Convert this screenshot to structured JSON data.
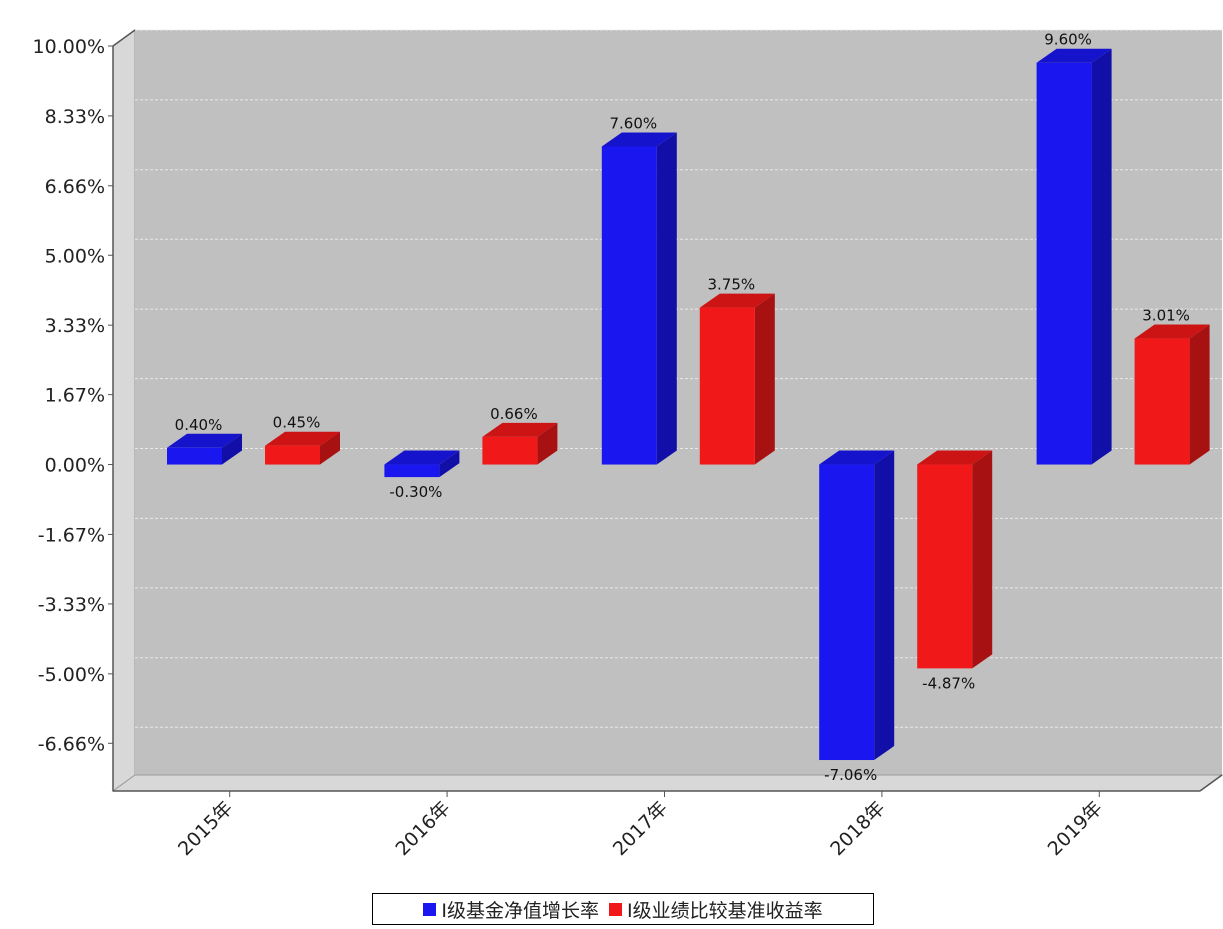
{
  "chart_data": {
    "type": "bar",
    "categories": [
      "2015年",
      "2016年",
      "2017年",
      "2018年",
      "2019年"
    ],
    "series": [
      {
        "name": "I级基金净值增长率",
        "color": "#1a16f0",
        "values": [
          0.4,
          -0.3,
          7.6,
          -7.06,
          9.6
        ]
      },
      {
        "name": "I级业绩比较基准收益率",
        "color": "#f01818",
        "values": [
          0.45,
          0.66,
          3.75,
          -4.87,
          3.01
        ]
      }
    ],
    "data_labels": [
      [
        "0.40%",
        "-0.30%",
        "7.60%",
        "-7.06%",
        "9.60%"
      ],
      [
        "0.45%",
        "0.66%",
        "3.75%",
        "-4.87%",
        "3.01%"
      ]
    ],
    "yticks": [
      10.0,
      8.33,
      6.66,
      5.0,
      3.33,
      1.67,
      0.0,
      -1.67,
      -3.33,
      -5.0,
      -6.66
    ],
    "ytick_labels": [
      "10.00%",
      "8.33%",
      "6.66%",
      "5.00%",
      "3.33%",
      "1.67%",
      "0.00%",
      "-1.67%",
      "-3.33%",
      "-5.00%",
      "-6.66%"
    ],
    "ylim": [
      -7.8,
      10.0
    ],
    "grid": true,
    "legend_position": "bottom-center",
    "style": "3d-bar",
    "plot_background": "#c0c0c0"
  }
}
